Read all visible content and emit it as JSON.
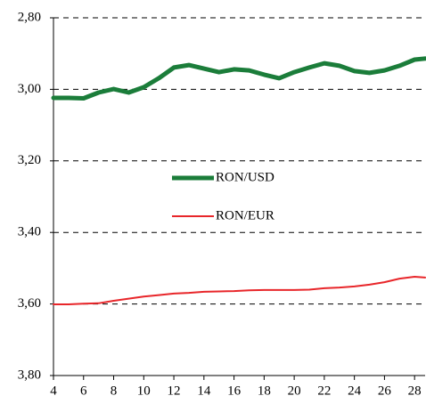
{
  "chart_data": {
    "type": "line",
    "xlim": [
      4,
      28.7
    ],
    "xticks": [
      4,
      6,
      8,
      10,
      12,
      14,
      16,
      18,
      20,
      22,
      24,
      26,
      28
    ],
    "ylim": [
      2.8,
      3.8
    ],
    "y_inverted": true,
    "yticks": [
      {
        "value": 2.8,
        "label": "2,80"
      },
      {
        "value": 3.0,
        "label": "3,00"
      },
      {
        "value": 3.2,
        "label": "3,20"
      },
      {
        "value": 3.4,
        "label": "3,40"
      },
      {
        "value": 3.6,
        "label": "3,60"
      },
      {
        "value": 3.8,
        "label": "3,80"
      }
    ],
    "grid": true,
    "legend": "center",
    "x": [
      4,
      5,
      6,
      7,
      8,
      9,
      10,
      11,
      12,
      13,
      14,
      15,
      16,
      17,
      18,
      19,
      20,
      21,
      22,
      23,
      24,
      25,
      26,
      27,
      28,
      28.7
    ],
    "series": [
      {
        "name": "RON/USD",
        "color": "#1b7d3a",
        "width": 5,
        "values": [
          3.024,
          3.024,
          3.025,
          3.009,
          2.999,
          3.009,
          2.994,
          2.969,
          2.939,
          2.932,
          2.942,
          2.952,
          2.944,
          2.947,
          2.959,
          2.969,
          2.952,
          2.939,
          2.927,
          2.934,
          2.949,
          2.954,
          2.947,
          2.934,
          2.917,
          2.914
        ]
      },
      {
        "name": "RON/EUR",
        "color": "#e8262a",
        "width": 2,
        "values": [
          3.601,
          3.601,
          3.599,
          3.598,
          3.591,
          3.585,
          3.579,
          3.575,
          3.571,
          3.569,
          3.566,
          3.565,
          3.564,
          3.562,
          3.561,
          3.561,
          3.561,
          3.56,
          3.556,
          3.554,
          3.551,
          3.546,
          3.539,
          3.529,
          3.524,
          3.526
        ]
      }
    ]
  }
}
